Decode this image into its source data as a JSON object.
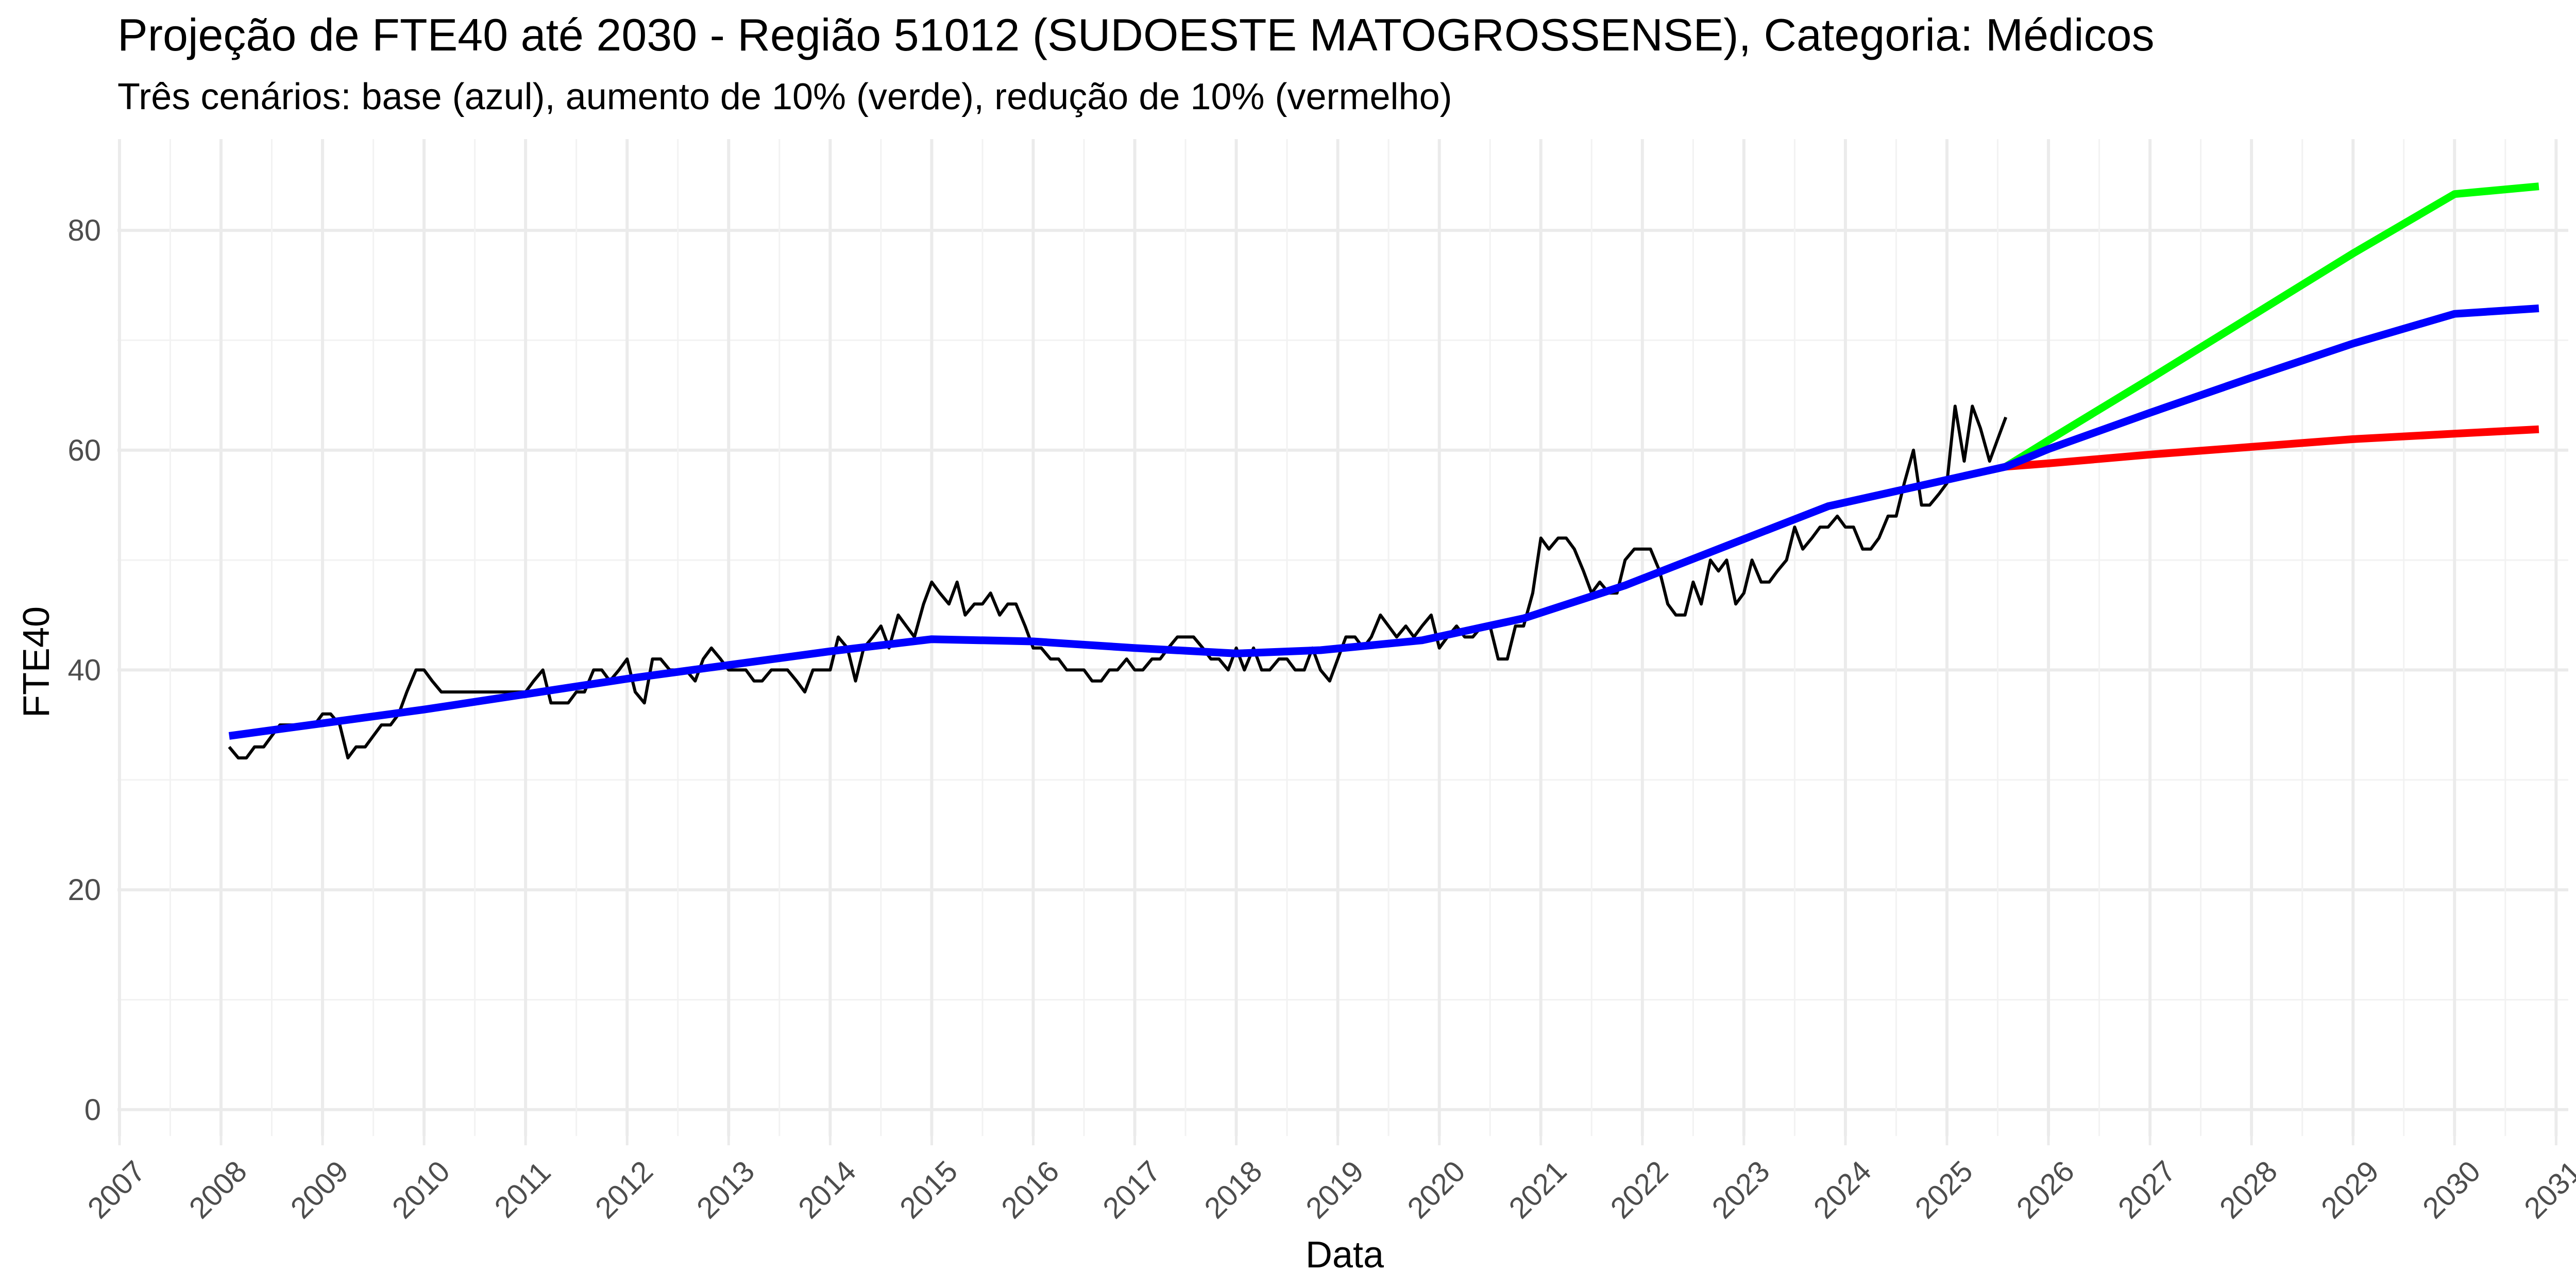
{
  "chart_data": {
    "type": "line",
    "title": "Projeção de FTE40 até 2030 - Região 51012 (SUDOESTE MATOGROSSENSE), Categoria: Médicos",
    "subtitle": "Três cenários: base (azul), aumento de 10% (verde), redução de 10% (vermelho)",
    "xlabel": "Data",
    "ylabel": "FTE40",
    "x_ticks": [
      "2007",
      "2008",
      "2009",
      "2010",
      "2011",
      "2012",
      "2013",
      "2014",
      "2015",
      "2016",
      "2017",
      "2018",
      "2019",
      "2020",
      "2021",
      "2022",
      "2023",
      "2024",
      "2025",
      "2026",
      "2027",
      "2028",
      "2029",
      "2030",
      "2031"
    ],
    "y_ticks": [
      0,
      20,
      40,
      60,
      80
    ],
    "xlim": [
      2006.98,
      2031.12
    ],
    "ylim": [
      -2.4,
      88.3
    ],
    "grid": true,
    "legend": "none",
    "colors": {
      "observed": "#000000",
      "base": "#0000ff",
      "increase": "#00ff00",
      "decrease": "#ff0000",
      "grid": "#ebebeb",
      "tick_text": "#4d4d4d"
    },
    "series": [
      {
        "key": "observed",
        "points": [
          [
            2008.08,
            33
          ],
          [
            2008.17,
            32
          ],
          [
            2008.25,
            32
          ],
          [
            2008.33,
            33
          ],
          [
            2008.42,
            33
          ],
          [
            2008.5,
            34
          ],
          [
            2008.58,
            35
          ],
          [
            2008.67,
            35
          ],
          [
            2008.75,
            35
          ],
          [
            2008.83,
            35
          ],
          [
            2008.92,
            35
          ],
          [
            2009.0,
            36
          ],
          [
            2009.08,
            36
          ],
          [
            2009.17,
            35
          ],
          [
            2009.25,
            32
          ],
          [
            2009.33,
            33
          ],
          [
            2009.42,
            33
          ],
          [
            2009.5,
            34
          ],
          [
            2009.58,
            35
          ],
          [
            2009.67,
            35
          ],
          [
            2009.75,
            36
          ],
          [
            2009.83,
            38
          ],
          [
            2009.92,
            40
          ],
          [
            2010.0,
            40
          ],
          [
            2010.08,
            39
          ],
          [
            2010.17,
            38
          ],
          [
            2010.25,
            38
          ],
          [
            2010.5,
            38
          ],
          [
            2010.75,
            38
          ],
          [
            2011.0,
            38
          ],
          [
            2011.08,
            39
          ],
          [
            2011.17,
            40
          ],
          [
            2011.25,
            37
          ],
          [
            2011.33,
            37
          ],
          [
            2011.42,
            37
          ],
          [
            2011.5,
            38
          ],
          [
            2011.58,
            38
          ],
          [
            2011.67,
            40
          ],
          [
            2011.75,
            40
          ],
          [
            2011.83,
            39
          ],
          [
            2011.92,
            40
          ],
          [
            2012.0,
            41
          ],
          [
            2012.08,
            38
          ],
          [
            2012.17,
            37
          ],
          [
            2012.25,
            41
          ],
          [
            2012.33,
            41
          ],
          [
            2012.42,
            40
          ],
          [
            2012.5,
            40
          ],
          [
            2012.58,
            40
          ],
          [
            2012.67,
            39
          ],
          [
            2012.75,
            41
          ],
          [
            2012.83,
            42
          ],
          [
            2012.92,
            41
          ],
          [
            2013.0,
            40
          ],
          [
            2013.08,
            40
          ],
          [
            2013.17,
            40
          ],
          [
            2013.25,
            39
          ],
          [
            2013.33,
            39
          ],
          [
            2013.42,
            40
          ],
          [
            2013.5,
            40
          ],
          [
            2013.58,
            40
          ],
          [
            2013.67,
            39
          ],
          [
            2013.75,
            38
          ],
          [
            2013.83,
            40
          ],
          [
            2013.92,
            40
          ],
          [
            2014.0,
            40
          ],
          [
            2014.08,
            43
          ],
          [
            2014.17,
            42
          ],
          [
            2014.25,
            39
          ],
          [
            2014.33,
            42
          ],
          [
            2014.42,
            43
          ],
          [
            2014.5,
            44
          ],
          [
            2014.58,
            42
          ],
          [
            2014.67,
            45
          ],
          [
            2014.75,
            44
          ],
          [
            2014.83,
            43
          ],
          [
            2014.92,
            46
          ],
          [
            2015.0,
            48
          ],
          [
            2015.08,
            47
          ],
          [
            2015.17,
            46
          ],
          [
            2015.25,
            48
          ],
          [
            2015.33,
            45
          ],
          [
            2015.42,
            46
          ],
          [
            2015.5,
            46
          ],
          [
            2015.58,
            47
          ],
          [
            2015.67,
            45
          ],
          [
            2015.75,
            46
          ],
          [
            2015.83,
            46
          ],
          [
            2015.92,
            44
          ],
          [
            2016.0,
            42
          ],
          [
            2016.08,
            42
          ],
          [
            2016.17,
            41
          ],
          [
            2016.25,
            41
          ],
          [
            2016.33,
            40
          ],
          [
            2016.42,
            40
          ],
          [
            2016.5,
            40
          ],
          [
            2016.58,
            39
          ],
          [
            2016.67,
            39
          ],
          [
            2016.75,
            40
          ],
          [
            2016.83,
            40
          ],
          [
            2016.92,
            41
          ],
          [
            2017.0,
            40
          ],
          [
            2017.08,
            40
          ],
          [
            2017.17,
            41
          ],
          [
            2017.25,
            41
          ],
          [
            2017.33,
            42
          ],
          [
            2017.42,
            43
          ],
          [
            2017.5,
            43
          ],
          [
            2017.58,
            43
          ],
          [
            2017.67,
            42
          ],
          [
            2017.75,
            41
          ],
          [
            2017.83,
            41
          ],
          [
            2017.92,
            40
          ],
          [
            2018.0,
            42
          ],
          [
            2018.08,
            40
          ],
          [
            2018.17,
            42
          ],
          [
            2018.25,
            40
          ],
          [
            2018.33,
            40
          ],
          [
            2018.42,
            41
          ],
          [
            2018.5,
            41
          ],
          [
            2018.58,
            40
          ],
          [
            2018.67,
            40
          ],
          [
            2018.75,
            42
          ],
          [
            2018.83,
            40
          ],
          [
            2018.92,
            39
          ],
          [
            2019.0,
            41
          ],
          [
            2019.08,
            43
          ],
          [
            2019.17,
            43
          ],
          [
            2019.25,
            42
          ],
          [
            2019.33,
            43
          ],
          [
            2019.42,
            45
          ],
          [
            2019.5,
            44
          ],
          [
            2019.58,
            43
          ],
          [
            2019.67,
            44
          ],
          [
            2019.75,
            43
          ],
          [
            2019.83,
            44
          ],
          [
            2019.92,
            45
          ],
          [
            2020.0,
            42
          ],
          [
            2020.08,
            43
          ],
          [
            2020.17,
            44
          ],
          [
            2020.25,
            43
          ],
          [
            2020.33,
            43
          ],
          [
            2020.42,
            44
          ],
          [
            2020.5,
            44
          ],
          [
            2020.58,
            41
          ],
          [
            2020.67,
            41
          ],
          [
            2020.75,
            44
          ],
          [
            2020.83,
            44
          ],
          [
            2020.92,
            47
          ],
          [
            2021.0,
            52
          ],
          [
            2021.08,
            51
          ],
          [
            2021.17,
            52
          ],
          [
            2021.25,
            52
          ],
          [
            2021.33,
            51
          ],
          [
            2021.42,
            49
          ],
          [
            2021.5,
            47
          ],
          [
            2021.58,
            48
          ],
          [
            2021.67,
            47
          ],
          [
            2021.75,
            47
          ],
          [
            2021.83,
            50
          ],
          [
            2021.92,
            51
          ],
          [
            2022.0,
            51
          ],
          [
            2022.08,
            51
          ],
          [
            2022.17,
            49
          ],
          [
            2022.25,
            46
          ],
          [
            2022.33,
            45
          ],
          [
            2022.42,
            45
          ],
          [
            2022.5,
            48
          ],
          [
            2022.58,
            46
          ],
          [
            2022.67,
            50
          ],
          [
            2022.75,
            49
          ],
          [
            2022.83,
            50
          ],
          [
            2022.92,
            46
          ],
          [
            2023.0,
            47
          ],
          [
            2023.08,
            50
          ],
          [
            2023.17,
            48
          ],
          [
            2023.25,
            48
          ],
          [
            2023.33,
            49
          ],
          [
            2023.42,
            50
          ],
          [
            2023.5,
            53
          ],
          [
            2023.58,
            51
          ],
          [
            2023.67,
            52
          ],
          [
            2023.75,
            53
          ],
          [
            2023.83,
            53
          ],
          [
            2023.92,
            54
          ],
          [
            2024.0,
            53
          ],
          [
            2024.08,
            53
          ],
          [
            2024.17,
            51
          ],
          [
            2024.25,
            51
          ],
          [
            2024.33,
            52
          ],
          [
            2024.42,
            54
          ],
          [
            2024.5,
            54
          ],
          [
            2024.58,
            57
          ],
          [
            2024.67,
            60
          ],
          [
            2024.75,
            55
          ],
          [
            2024.83,
            55
          ],
          [
            2024.92,
            56
          ],
          [
            2025.0,
            57
          ],
          [
            2025.08,
            64
          ],
          [
            2025.17,
            59
          ],
          [
            2025.25,
            64
          ],
          [
            2025.33,
            62
          ],
          [
            2025.42,
            59
          ],
          [
            2025.5,
            61
          ],
          [
            2025.58,
            63
          ]
        ]
      },
      {
        "key": "base",
        "points": [
          [
            2008.08,
            34
          ],
          [
            2010.0,
            36.4
          ],
          [
            2012.0,
            39.2
          ],
          [
            2014.0,
            41.7
          ],
          [
            2015.0,
            42.8
          ],
          [
            2016.0,
            42.6
          ],
          [
            2017.0,
            42.0
          ],
          [
            2018.0,
            41.5
          ],
          [
            2018.83,
            41.8
          ],
          [
            2019.83,
            42.7
          ],
          [
            2020.83,
            44.7
          ],
          [
            2021.83,
            47.7
          ],
          [
            2022.83,
            51.3
          ],
          [
            2023.83,
            54.9
          ],
          [
            2025.58,
            58.5
          ],
          [
            2026.0,
            60.1
          ],
          [
            2027.0,
            63.4
          ],
          [
            2028.0,
            66.6
          ],
          [
            2029.0,
            69.7
          ],
          [
            2030.0,
            72.4
          ],
          [
            2030.83,
            72.9
          ]
        ]
      },
      {
        "key": "increase",
        "points": [
          [
            2025.58,
            58.5
          ],
          [
            2026.0,
            60.9
          ],
          [
            2027.0,
            66.5
          ],
          [
            2028.0,
            72.2
          ],
          [
            2029.0,
            77.9
          ],
          [
            2030.0,
            83.3
          ],
          [
            2030.83,
            84.0
          ]
        ]
      },
      {
        "key": "decrease",
        "points": [
          [
            2025.58,
            58.5
          ],
          [
            2026.0,
            58.8
          ],
          [
            2027.0,
            59.6
          ],
          [
            2028.0,
            60.3
          ],
          [
            2029.0,
            61.0
          ],
          [
            2030.0,
            61.5
          ],
          [
            2030.83,
            61.9
          ]
        ]
      }
    ]
  }
}
